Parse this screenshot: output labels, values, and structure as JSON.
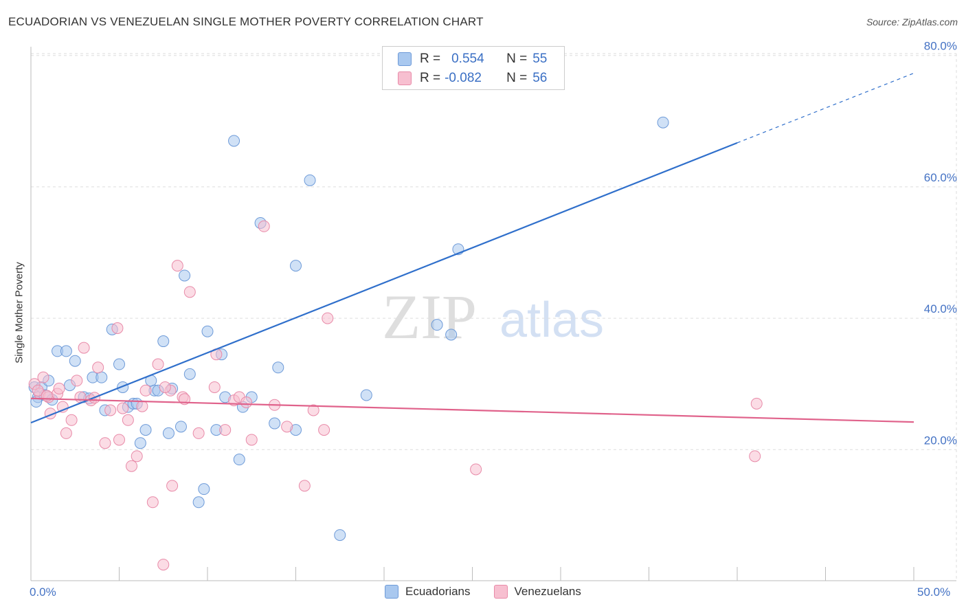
{
  "title": "ECUADORIAN VS VENEZUELAN SINGLE MOTHER POVERTY CORRELATION CHART",
  "source": "Source: ZipAtlas.com",
  "watermark": {
    "zip": "ZIP",
    "atlas": "atlas"
  },
  "legend": {
    "ecuadorian": {
      "r_label": "R =",
      "r_value": "0.554",
      "n_label": "N =",
      "n_value": "55"
    },
    "venezuelan": {
      "r_label": "R =",
      "r_value": "-0.082",
      "n_label": "N =",
      "n_value": "56"
    }
  },
  "bottom_legend": [
    "Ecuadorians",
    "Venezuelans"
  ],
  "x_min_label": "0.0%",
  "x_max_label": "50.0%",
  "colors": {
    "ecuadorian_fill": "#a9c8ef",
    "ecuadorian_stroke": "#6d9ad8",
    "ecuadorian_line": "#2f6fcb",
    "venezuelan_fill": "#f7bfd0",
    "venezuelan_stroke": "#e88aa8",
    "venezuelan_line": "#e0628b",
    "tick_label": "#4472c4",
    "grid": "#dddddd"
  },
  "chart_data": {
    "type": "scatter",
    "title": "ECUADORIAN VS VENEZUELAN SINGLE MOTHER POVERTY CORRELATION CHART",
    "xlabel": "",
    "ylabel": "Single Mother Poverty",
    "xlim": [
      0,
      50
    ],
    "ylim": [
      0,
      82
    ],
    "y_ticks": [
      20,
      40,
      60,
      80
    ],
    "y_tick_labels": [
      "20.0%",
      "40.0%",
      "60.0%",
      "80.0%"
    ],
    "grid": true,
    "legend_position": "top-center",
    "series": [
      {
        "name": "Ecuadorians",
        "R": 0.554,
        "N": 55,
        "trend": {
          "x0": 0,
          "y0": 24.1,
          "x1": 40,
          "y1": 66.7,
          "dashed_to_x": 50,
          "dashed_to_y": 77.3
        },
        "points": [
          [
            0.2,
            29.5
          ],
          [
            0.4,
            28.0
          ],
          [
            0.6,
            29.5
          ],
          [
            0.8,
            28.3
          ],
          [
            1.0,
            30.5
          ],
          [
            1.5,
            35.0
          ],
          [
            2.0,
            35.0
          ],
          [
            2.5,
            33.5
          ],
          [
            2.2,
            29.8
          ],
          [
            3.0,
            28.0
          ],
          [
            3.5,
            31.0
          ],
          [
            4.0,
            31.0
          ],
          [
            4.2,
            26.0
          ],
          [
            4.6,
            38.3
          ],
          [
            5.0,
            33.0
          ],
          [
            5.2,
            29.5
          ],
          [
            5.5,
            26.5
          ],
          [
            5.8,
            27.0
          ],
          [
            6.2,
            21.0
          ],
          [
            6.5,
            23.0
          ],
          [
            6.8,
            30.5
          ],
          [
            7.0,
            29.0
          ],
          [
            7.2,
            29.0
          ],
          [
            7.5,
            36.5
          ],
          [
            7.8,
            22.5
          ],
          [
            8.0,
            29.3
          ],
          [
            8.5,
            23.5
          ],
          [
            8.7,
            46.5
          ],
          [
            9.0,
            31.5
          ],
          [
            9.5,
            12.0
          ],
          [
            9.8,
            14.0
          ],
          [
            10.0,
            38.0
          ],
          [
            10.5,
            23.0
          ],
          [
            10.8,
            34.5
          ],
          [
            11.0,
            28.0
          ],
          [
            11.5,
            67.0
          ],
          [
            11.8,
            18.5
          ],
          [
            12.0,
            26.5
          ],
          [
            12.5,
            28.0
          ],
          [
            13.0,
            54.5
          ],
          [
            13.8,
            24.0
          ],
          [
            14.0,
            32.5
          ],
          [
            15.0,
            48.0
          ],
          [
            15.0,
            23.0
          ],
          [
            15.8,
            61.0
          ],
          [
            17.5,
            7.0
          ],
          [
            19.0,
            28.3
          ],
          [
            23.0,
            39.0
          ],
          [
            23.8,
            37.5
          ],
          [
            24.2,
            50.5
          ],
          [
            35.8,
            69.8
          ],
          [
            0.3,
            27.3
          ],
          [
            1.2,
            27.6
          ],
          [
            3.3,
            27.8
          ],
          [
            6.0,
            27.0
          ]
        ]
      },
      {
        "name": "Venezuelans",
        "R": -0.082,
        "N": 56,
        "trend": {
          "x0": 0,
          "y0": 27.8,
          "x1": 50,
          "y1": 24.2
        },
        "points": [
          [
            0.2,
            30.0
          ],
          [
            0.5,
            28.5
          ],
          [
            0.7,
            31.0
          ],
          [
            1.0,
            28.0
          ],
          [
            1.1,
            25.5
          ],
          [
            1.5,
            28.5
          ],
          [
            1.8,
            26.5
          ],
          [
            2.0,
            22.5
          ],
          [
            2.3,
            24.5
          ],
          [
            2.6,
            30.5
          ],
          [
            3.0,
            35.5
          ],
          [
            3.4,
            27.5
          ],
          [
            3.8,
            32.5
          ],
          [
            4.2,
            21.0
          ],
          [
            4.5,
            26.0
          ],
          [
            4.9,
            38.5
          ],
          [
            5.0,
            21.5
          ],
          [
            5.5,
            24.5
          ],
          [
            5.7,
            17.5
          ],
          [
            6.0,
            19.0
          ],
          [
            6.5,
            29.0
          ],
          [
            6.9,
            12.0
          ],
          [
            7.2,
            33.0
          ],
          [
            7.5,
            2.5
          ],
          [
            7.9,
            29.0
          ],
          [
            8.0,
            14.5
          ],
          [
            8.3,
            48.0
          ],
          [
            8.6,
            28.0
          ],
          [
            9.0,
            44.0
          ],
          [
            9.5,
            22.5
          ],
          [
            10.5,
            34.5
          ],
          [
            11.0,
            23.0
          ],
          [
            11.5,
            27.5
          ],
          [
            11.8,
            28.0
          ],
          [
            12.5,
            21.5
          ],
          [
            13.2,
            54.0
          ],
          [
            14.5,
            23.5
          ],
          [
            15.5,
            14.5
          ],
          [
            16.0,
            26.0
          ],
          [
            16.6,
            23.0
          ],
          [
            16.8,
            40.0
          ],
          [
            25.2,
            17.0
          ],
          [
            41.0,
            19.0
          ],
          [
            41.1,
            27.0
          ],
          [
            0.4,
            29.0
          ],
          [
            0.9,
            28.2
          ],
          [
            2.8,
            28.0
          ],
          [
            3.6,
            27.9
          ],
          [
            5.2,
            26.3
          ],
          [
            6.3,
            26.6
          ],
          [
            7.6,
            29.5
          ],
          [
            8.7,
            27.7
          ],
          [
            10.4,
            29.5
          ],
          [
            12.2,
            27.2
          ],
          [
            13.8,
            26.8
          ],
          [
            1.6,
            29.3
          ]
        ]
      }
    ]
  }
}
